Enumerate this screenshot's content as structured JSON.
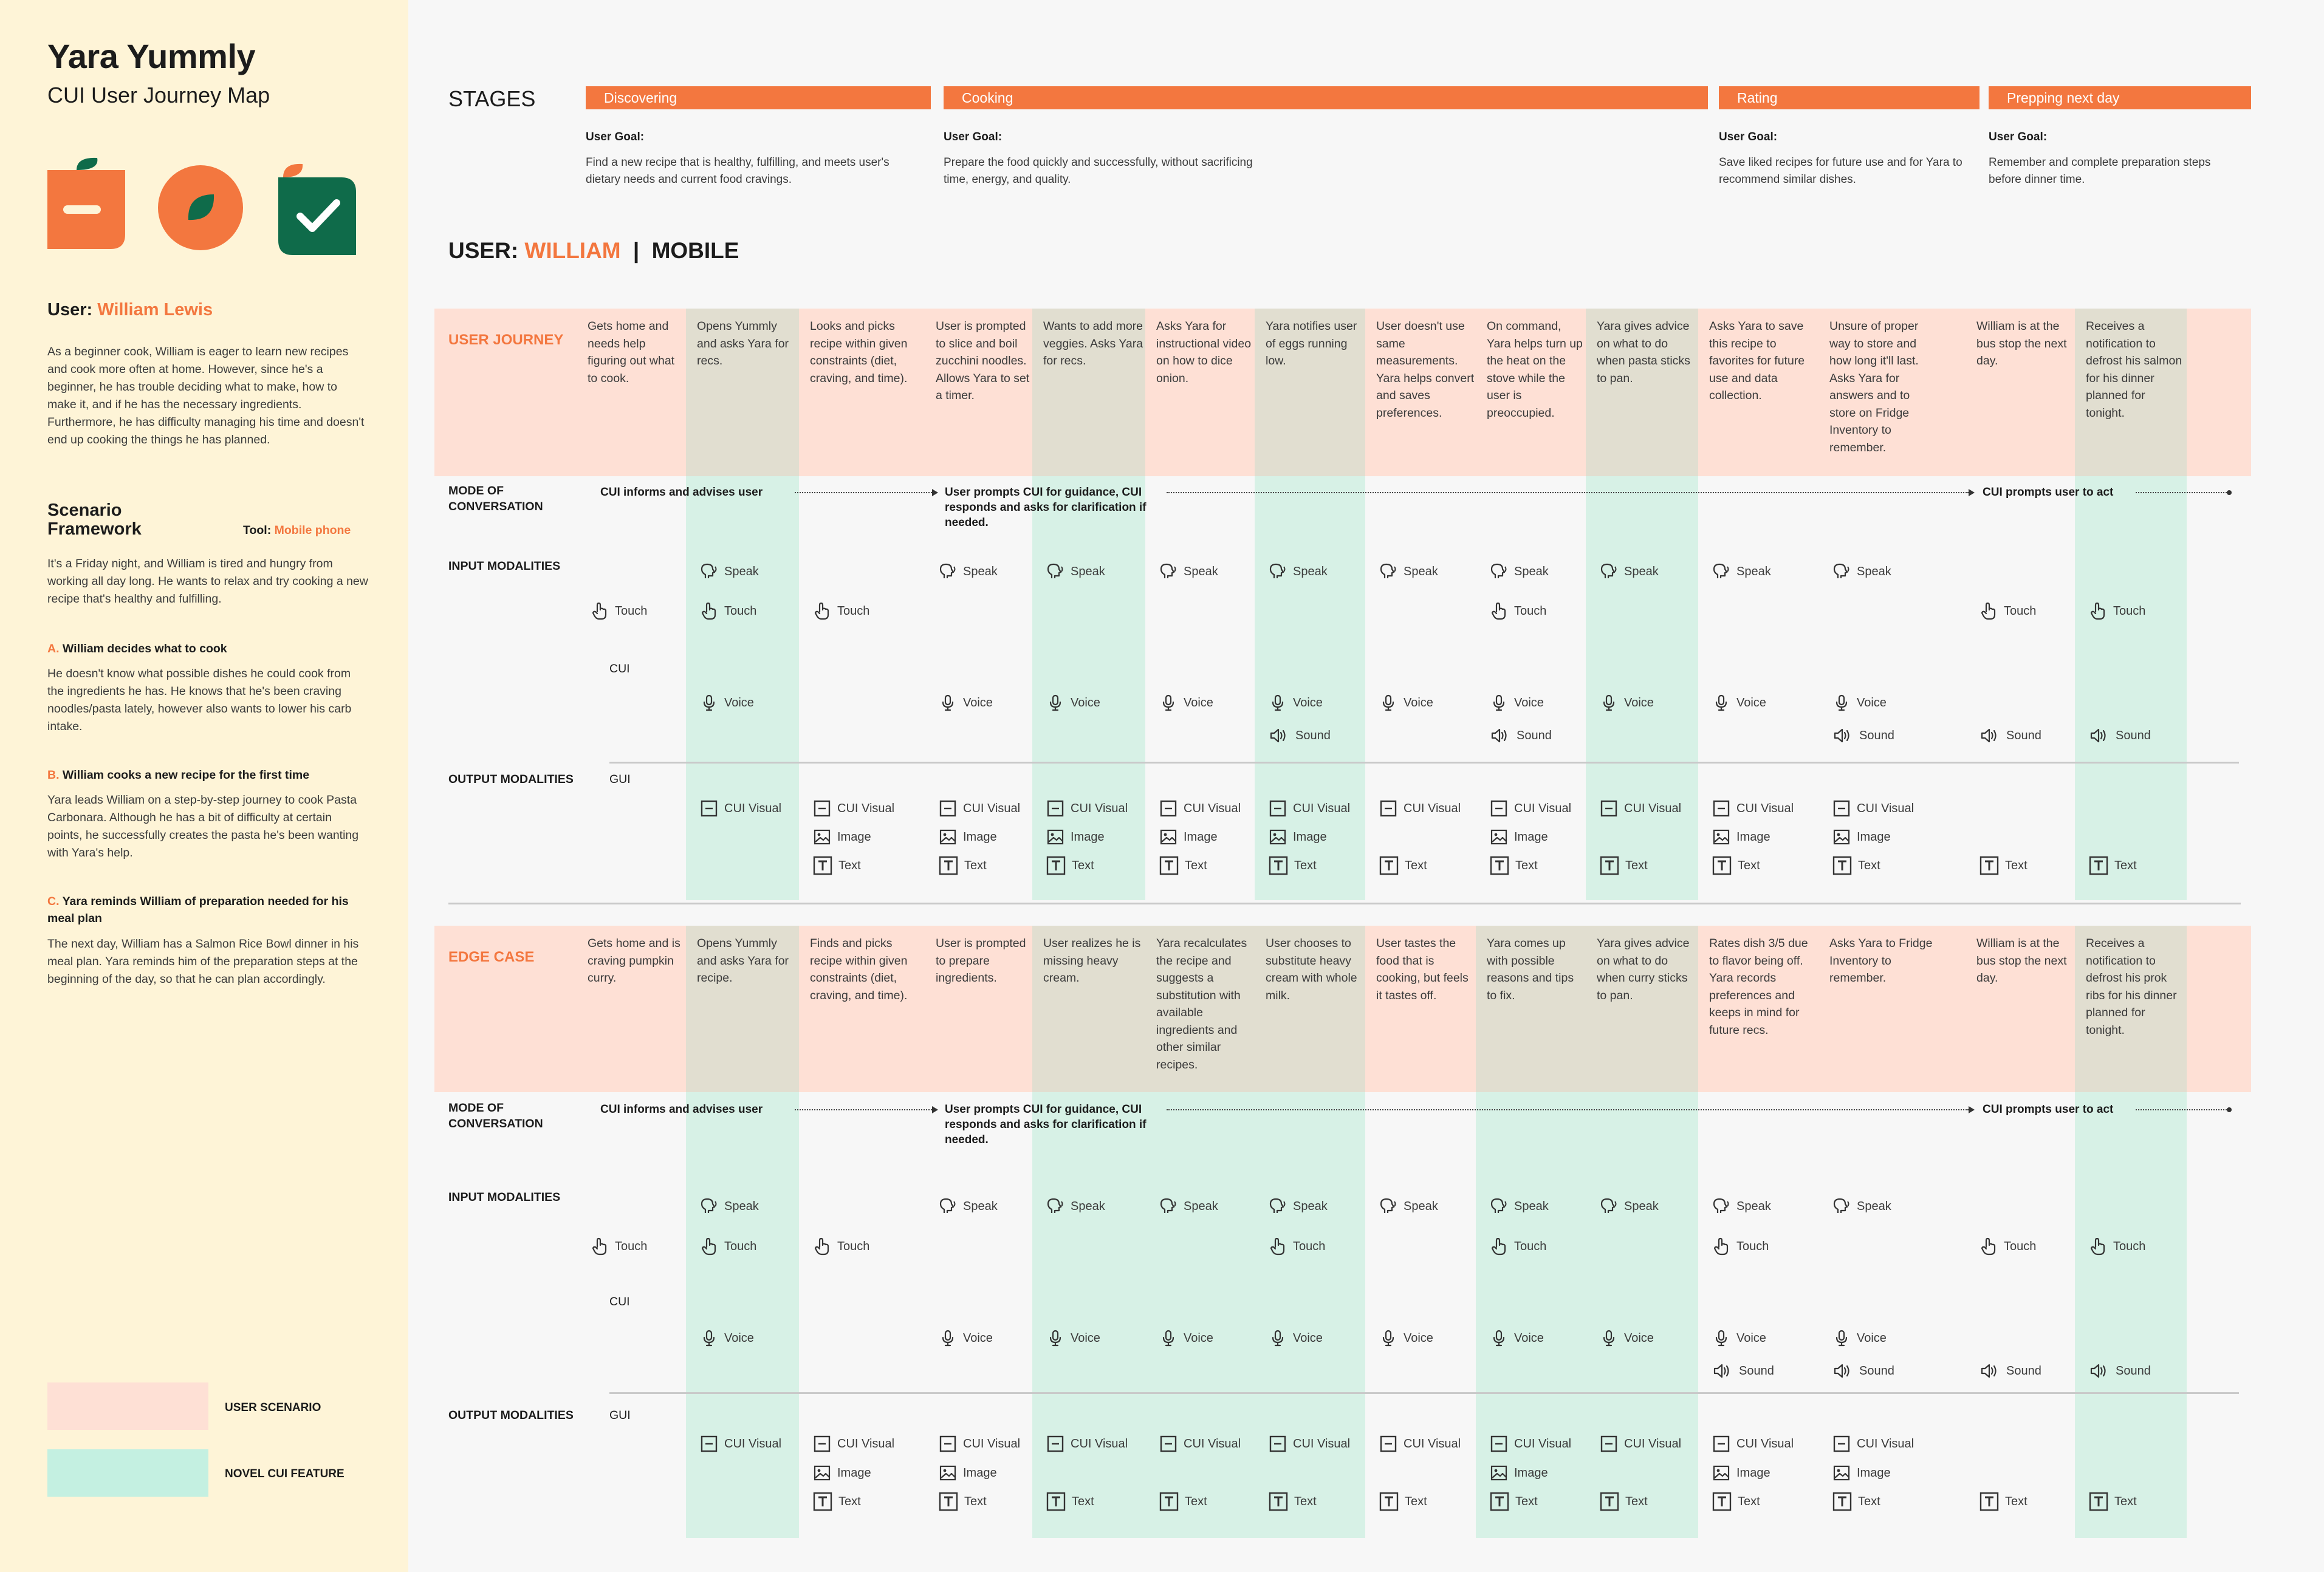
{
  "colors": {
    "accent": "#f3773f",
    "green": "#0f6b4a",
    "scenario": "#fee0d5",
    "novel": "#d7f1e6",
    "overlap": "#e1ded0",
    "sidebar": "#fef4d7"
  },
  "sidebar": {
    "title": "Yara Yummly",
    "subtitle": "CUI User Journey Map",
    "logos": [
      "orange-tag-logo-icon",
      "orange-circle-leaf-logo-icon",
      "green-check-logo-icon"
    ],
    "user_label": "User:",
    "user_name": "William Lewis",
    "bio": "As a beginner cook, William is eager to learn new recipes and cook more often at home. However, since he's a beginner, he has trouble deciding what to make, how to make it, and if he has the necessary ingredients. Furthermore, he has difficulty managing his time and doesn't end up cooking the things he has planned.",
    "scenario_title": "Scenario Framework",
    "tool_label": "Tool:",
    "tool_value": "Mobile phone",
    "scenario_text": "It's a Friday night, and William is tired and hungry from working all day long. He wants to relax and try cooking a new recipe that's healthy and fulfilling.",
    "a_letter": "A.",
    "a_title": "William decides what to cook",
    "a_text": "He doesn't know what possible dishes he could cook from the ingredients he has. He knows that he's been craving noodles/pasta lately, however also wants to lower his carb intake.",
    "b_letter": "B.",
    "b_title": "William cooks a new recipe for the first time",
    "b_text": "Yara leads William on a step-by-step journey to cook Pasta Carbonara. Although he has a bit of difficulty at certain points, he successfully creates the pasta he's been wanting with Yara's help.",
    "c_letter": "C.",
    "c_title": "Yara reminds William of preparation needed for his meal plan",
    "c_text": "The next day, William has a Salmon Rice Bowl dinner in his meal plan. Yara reminds him of the preparation steps at the beginning of the day, so that he can plan accordingly.",
    "legend": [
      {
        "label": "USER SCENARIO"
      },
      {
        "label": "NOVEL CUI FEATURE"
      }
    ]
  },
  "stages_label": "STAGES",
  "stages": [
    {
      "name": "Discovering",
      "goal_label": "User Goal:",
      "goal": "Find a new recipe that is healthy, fulfilling, and meets user's dietary needs and current food cravings."
    },
    {
      "name": "Cooking",
      "goal_label": "User Goal:",
      "goal": "Prepare the food quickly and successfully, without sacrificing time, energy, and quality."
    },
    {
      "name": "Rating",
      "goal_label": "User Goal:",
      "goal": "Save liked recipes for future use and for Yara to recommend similar dishes."
    },
    {
      "name": "Prepping next day",
      "goal_label": "User Goal:",
      "goal": "Remember and complete preparation steps before dinner time."
    }
  ],
  "user_heading": {
    "prefix": "USER:",
    "name": "WILLIAM",
    "sep": "|",
    "device": "MOBILE"
  },
  "row_labels": {
    "mode": "MODE OF CONVERSATION",
    "input": "INPUT MODALITIES",
    "output": "OUTPUT MODALITIES",
    "cui": "CUI",
    "gui": "GUI"
  },
  "modality_labels": {
    "speak": "Speak",
    "touch": "Touch",
    "voice": "Voice",
    "sound": "Sound",
    "cui_visual": "CUI Visual",
    "image": "Image",
    "text": "Text"
  },
  "sections": [
    {
      "label": "USER JOURNEY",
      "modes": [
        "CUI informs and advises user",
        "User prompts CUI for guidance, CUI responds and asks for clarification if needed.",
        "CUI prompts user to act"
      ],
      "steps": [
        {
          "text": "Gets home and needs help figuring out what to cook.",
          "in": [
            "touch"
          ],
          "out": []
        },
        {
          "text": "Opens Yummly and asks Yara for recs.",
          "in": [
            "speak",
            "touch",
            "voice"
          ],
          "out": [
            "cui_visual"
          ]
        },
        {
          "text": "Looks and picks recipe within given constraints (diet, craving, and time).",
          "in": [
            "touch"
          ],
          "out": [
            "cui_visual",
            "image",
            "text"
          ]
        },
        {
          "text": "User is prompted to slice and boil zucchini noodles. Allows Yara to set a timer.",
          "in": [
            "speak",
            "voice"
          ],
          "out": [
            "cui_visual",
            "image",
            "text"
          ]
        },
        {
          "text": "Wants to add more veggies. Asks Yara for recs.",
          "in": [
            "speak",
            "voice"
          ],
          "out": [
            "cui_visual",
            "image",
            "text"
          ]
        },
        {
          "text": "Asks Yara for instructional video on how to dice onion.",
          "in": [
            "speak",
            "voice"
          ],
          "out": [
            "cui_visual",
            "image",
            "text"
          ]
        },
        {
          "text": "Yara notifies user of eggs running low.",
          "in": [
            "speak",
            "voice",
            "sound"
          ],
          "out": [
            "cui_visual",
            "image",
            "text"
          ]
        },
        {
          "text": "User doesn't use same measurements. Yara helps convert and saves preferences.",
          "in": [
            "speak",
            "voice"
          ],
          "out": [
            "cui_visual",
            "text"
          ]
        },
        {
          "text": "On command, Yara helps turn up the heat on the stove while the user is preoccupied.",
          "in": [
            "speak",
            "touch",
            "voice",
            "sound"
          ],
          "out": [
            "cui_visual",
            "image",
            "text"
          ]
        },
        {
          "text": "Yara gives advice on what to do when pasta sticks to pan.",
          "in": [
            "speak",
            "voice"
          ],
          "out": [
            "cui_visual",
            "text"
          ]
        },
        {
          "text": "Asks Yara to save this recipe to favorites for future use and data collection.",
          "in": [
            "speak",
            "voice"
          ],
          "out": [
            "cui_visual",
            "image",
            "text"
          ]
        },
        {
          "text": "Unsure of proper way to store and how long it'll last. Asks Yara for answers and to store on Fridge Inventory to remember.",
          "in": [
            "speak",
            "voice",
            "sound"
          ],
          "out": [
            "cui_visual",
            "image",
            "text"
          ]
        },
        {
          "text": "William is at the bus stop the next day.",
          "in": [
            "touch",
            "sound"
          ],
          "out": [
            "text"
          ]
        },
        {
          "text": "Receives a notification to defrost his salmon for his dinner planned for tonight.",
          "in": [
            "touch",
            "sound"
          ],
          "out": [
            "text"
          ]
        }
      ]
    },
    {
      "label": "EDGE CASE",
      "modes": [
        "CUI informs and advises user",
        "User prompts CUI for guidance, CUI responds and asks for clarification if needed.",
        "CUI prompts user to act"
      ],
      "steps": [
        {
          "text": "Gets home and is craving pumpkin curry.",
          "in": [
            "touch"
          ],
          "out": []
        },
        {
          "text": "Opens Yummly and asks Yara for recipe.",
          "in": [
            "speak",
            "touch",
            "voice"
          ],
          "out": [
            "cui_visual"
          ]
        },
        {
          "text": "Finds and picks recipe within given constraints (diet, craving, and time).",
          "in": [
            "touch"
          ],
          "out": [
            "cui_visual",
            "image",
            "text"
          ]
        },
        {
          "text": "User is prompted to prepare ingredients.",
          "in": [
            "speak",
            "voice"
          ],
          "out": [
            "cui_visual",
            "image",
            "text"
          ]
        },
        {
          "text": "User realizes he is missing heavy cream.",
          "in": [
            "speak",
            "voice"
          ],
          "out": [
            "cui_visual",
            "text"
          ]
        },
        {
          "text": "Yara recalculates the recipe and suggests a substitution with available ingredients and other similar recipes.",
          "in": [
            "speak",
            "voice"
          ],
          "out": [
            "cui_visual",
            "text"
          ]
        },
        {
          "text": "User chooses to substitute heavy cream with whole milk.",
          "in": [
            "speak",
            "touch",
            "voice"
          ],
          "out": [
            "cui_visual",
            "text"
          ]
        },
        {
          "text": "User tastes the food that is cooking, but feels it tastes off.",
          "in": [
            "speak",
            "voice"
          ],
          "out": [
            "cui_visual",
            "text"
          ]
        },
        {
          "text": "Yara comes up with possible reasons and tips to fix.",
          "in": [
            "speak",
            "touch",
            "voice"
          ],
          "out": [
            "cui_visual",
            "image",
            "text"
          ]
        },
        {
          "text": "Yara gives advice on what to do when curry sticks to pan.",
          "in": [
            "speak",
            "voice"
          ],
          "out": [
            "cui_visual",
            "text"
          ]
        },
        {
          "text": "Rates dish 3/5 due to flavor being off. Yara records preferences and keeps in mind for future recs.",
          "in": [
            "speak",
            "touch",
            "voice",
            "sound"
          ],
          "out": [
            "cui_visual",
            "image",
            "text"
          ]
        },
        {
          "text": "Asks Yara to Fridge Inventory to remember.",
          "in": [
            "speak",
            "voice",
            "sound"
          ],
          "out": [
            "cui_visual",
            "image",
            "text"
          ]
        },
        {
          "text": "William is at the bus stop the next day.",
          "in": [
            "touch",
            "sound"
          ],
          "out": [
            "text"
          ]
        },
        {
          "text": "Receives a notification to defrost his prok ribs for his dinner planned for tonight.",
          "in": [
            "touch",
            "sound"
          ],
          "out": [
            "text"
          ]
        }
      ]
    }
  ]
}
